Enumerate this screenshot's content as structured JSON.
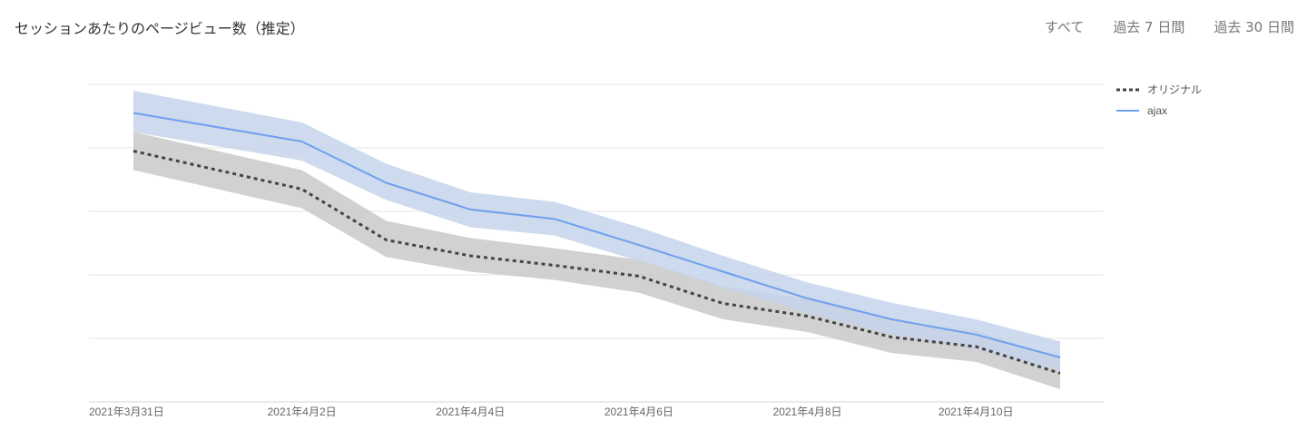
{
  "header": {
    "title": "セッションあたりのページビュー数（推定）",
    "range_tabs": [
      {
        "label": "すべて"
      },
      {
        "label": "過去 7 日間"
      },
      {
        "label": "過去 30 日間"
      }
    ]
  },
  "chart_data": {
    "type": "line",
    "title": "セッションあたりのページビュー数（推定）",
    "x_tick_labels": [
      "2021年3月31日",
      "2021年4月2日",
      "2021年4月4日",
      "2021年4月6日",
      "2021年4月8日",
      "2021年4月10日"
    ],
    "x": [
      "2021-03-31",
      "2021-04-02",
      "2021-04-03",
      "2021-04-04",
      "2021-04-05",
      "2021-04-06",
      "2021-04-07",
      "2021-04-08",
      "2021-04-09",
      "2021-04-10",
      "2021-04-11"
    ],
    "ylim": [
      0,
      5
    ],
    "y_tick_labels_shown": false,
    "grid": true,
    "legend": "top-right",
    "series": [
      {
        "name": "オリジナル",
        "style": "dotted",
        "color": "#444444",
        "band_color": "#c9c9c9",
        "values": [
          3.95,
          3.35,
          2.55,
          2.3,
          2.15,
          1.98,
          1.55,
          1.35,
          1.02,
          0.87,
          0.45
        ],
        "band_low": [
          3.65,
          3.05,
          2.28,
          2.05,
          1.92,
          1.72,
          1.3,
          1.1,
          0.77,
          0.63,
          0.2
        ],
        "band_high": [
          4.25,
          3.65,
          2.85,
          2.58,
          2.42,
          2.24,
          1.82,
          1.62,
          1.28,
          1.12,
          0.7
        ]
      },
      {
        "name": "ajax",
        "style": "solid",
        "color": "#6ea0ee",
        "band_color": "#c5d3ea",
        "values": [
          4.55,
          4.1,
          3.45,
          3.03,
          2.88,
          2.47,
          2.05,
          1.63,
          1.3,
          1.06,
          0.7
        ],
        "band_low": [
          4.25,
          3.8,
          3.18,
          2.75,
          2.62,
          2.22,
          1.8,
          1.4,
          1.06,
          0.83,
          0.48
        ],
        "band_high": [
          4.9,
          4.4,
          3.75,
          3.3,
          3.15,
          2.75,
          2.3,
          1.88,
          1.56,
          1.3,
          0.95
        ]
      }
    ]
  }
}
